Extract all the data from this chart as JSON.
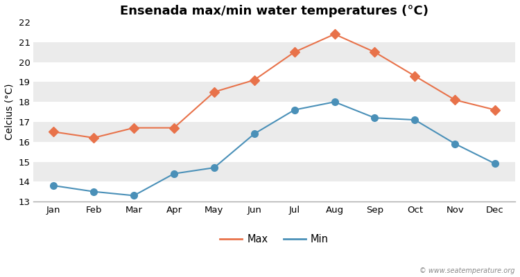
{
  "title": "Ensenada max/min water temperatures (°C)",
  "ylabel": "Celcius (°C)",
  "watermark": "© www.seatemperature.org",
  "months": [
    "Jan",
    "Feb",
    "Mar",
    "Apr",
    "May",
    "Jun",
    "Jul",
    "Aug",
    "Sep",
    "Oct",
    "Nov",
    "Dec"
  ],
  "max_values": [
    16.5,
    16.2,
    16.7,
    16.7,
    18.5,
    19.1,
    20.5,
    21.4,
    20.5,
    19.3,
    18.1,
    17.6
  ],
  "min_values": [
    13.8,
    13.5,
    13.3,
    14.4,
    14.7,
    16.4,
    17.6,
    18.0,
    17.2,
    17.1,
    15.9,
    14.9
  ],
  "max_color": "#e8724a",
  "min_color": "#4a90b8",
  "max_marker": "D",
  "min_marker": "o",
  "ylim": [
    13,
    22
  ],
  "yticks": [
    13,
    14,
    15,
    16,
    17,
    18,
    19,
    20,
    21,
    22
  ],
  "band_colors": [
    "#ffffff",
    "#ebebeb"
  ],
  "outer_bg": "#ffffff",
  "plot_bg": "#ffffff",
  "bottom_spine_color": "#aaaaaa",
  "legend_labels": [
    "Max",
    "Min"
  ],
  "title_fontsize": 13,
  "axis_label_fontsize": 10,
  "tick_fontsize": 9.5,
  "line_width": 1.5,
  "max_marker_size": 7,
  "min_marker_size": 7
}
